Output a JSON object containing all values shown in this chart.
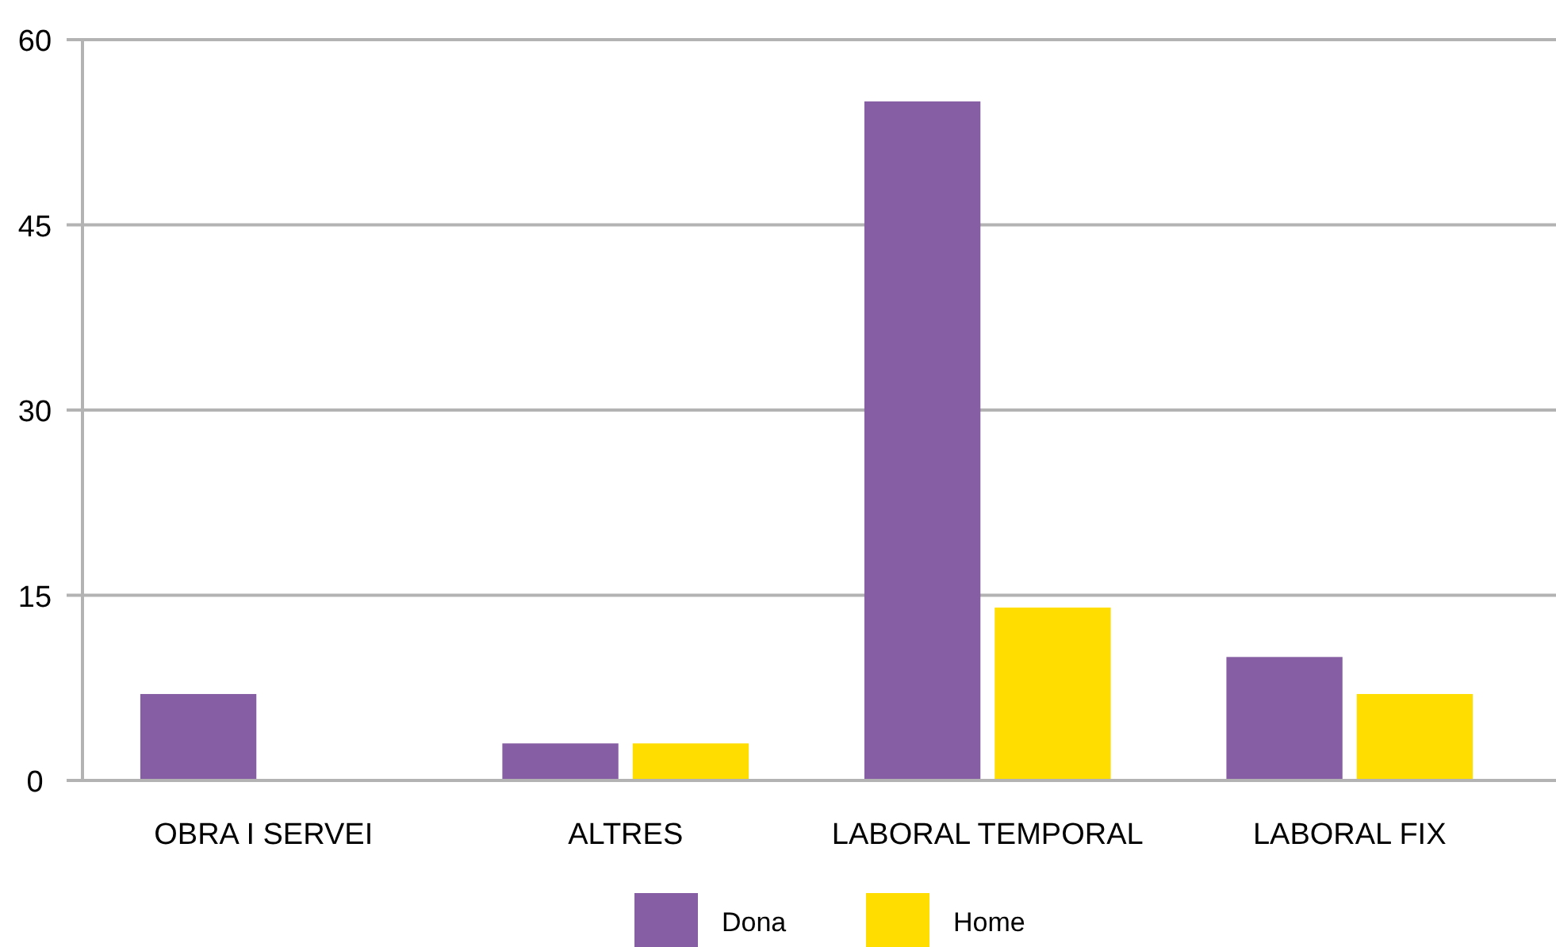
{
  "chart_data": {
    "type": "bar",
    "categories": [
      "OBRA I SERVEI",
      "ALTRES",
      "LABORAL TEMPORAL",
      "LABORAL FIX"
    ],
    "series": [
      {
        "name": "Dona",
        "color": "#865ea3",
        "values": [
          7,
          3,
          55,
          10
        ]
      },
      {
        "name": "Home",
        "color": "#ffdd00",
        "values": [
          0,
          3,
          14,
          7
        ]
      }
    ],
    "ylim": [
      0,
      60
    ],
    "yticks": [
      0,
      15,
      30,
      45,
      60
    ],
    "grid": "y",
    "legend": "bottom"
  }
}
